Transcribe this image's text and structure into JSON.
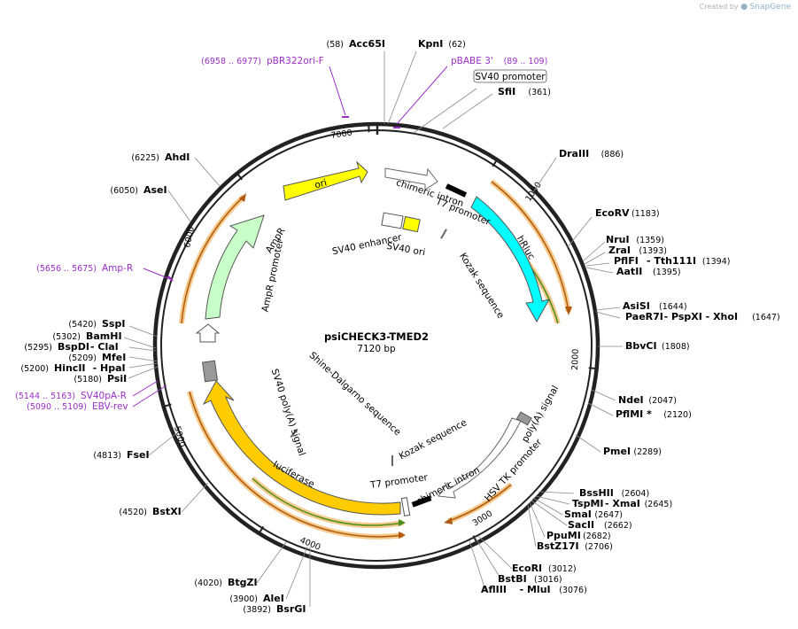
{
  "credit": {
    "prefix": "Created by",
    "brand": "SnapGene"
  },
  "plasmid": {
    "name": "psiCHECK3-TMED2",
    "length": "7120 bp"
  },
  "ticks": [
    "1000",
    "2000",
    "3000",
    "4000",
    "5000",
    "6000",
    "7000"
  ],
  "enzymes": [
    {
      "id": "acc65i",
      "name": "Acc65I",
      "pos": "(58)"
    },
    {
      "id": "kpni",
      "name": "KpnI",
      "pos": "(62)"
    },
    {
      "id": "sfii",
      "name": "SfiI",
      "pos": "(361)"
    },
    {
      "id": "draiii",
      "name": "DraIII",
      "pos": "(886)"
    },
    {
      "id": "ecorv",
      "name": "EcoRV",
      "pos": "(1183)"
    },
    {
      "id": "nrui",
      "name": "NruI",
      "pos": "(1359)"
    },
    {
      "id": "zrai",
      "name": "ZraI",
      "pos": "(1393)"
    },
    {
      "id": "pflfi",
      "name": "PflFI",
      "sep": "- Tth111I",
      "pos": "(1394)"
    },
    {
      "id": "aatii",
      "name": "AatII",
      "pos": "(1395)"
    },
    {
      "id": "asisi",
      "name": "AsiSI",
      "pos": "(1644)"
    },
    {
      "id": "paer7i",
      "name": "PaeR7I",
      "sep": "- PspXI  - XhoI",
      "pos": "(1647)"
    },
    {
      "id": "bbvci",
      "name": "BbvCI",
      "pos": "(1808)"
    },
    {
      "id": "ndei",
      "name": "NdeI",
      "pos": "(2047)"
    },
    {
      "id": "pflmi",
      "name": "PflMI *",
      "pos": "(2120)"
    },
    {
      "id": "pmei",
      "name": "PmeI",
      "pos": "(2289)"
    },
    {
      "id": "bsshii",
      "name": "BssHII",
      "pos": "(2604)"
    },
    {
      "id": "tspmi",
      "name": "TspMI",
      "sep": "- XmaI",
      "pos": "(2645)"
    },
    {
      "id": "smai",
      "name": "SmaI",
      "pos": "(2647)"
    },
    {
      "id": "sacii",
      "name": "SacII",
      "pos": "(2662)"
    },
    {
      "id": "ppumi",
      "name": "PpuMI",
      "pos": "(2682)"
    },
    {
      "id": "bstz17i",
      "name": "BstZ17I",
      "pos": "(2706)"
    },
    {
      "id": "ecori",
      "name": "EcoRI",
      "pos": "(3012)"
    },
    {
      "id": "bstbi",
      "name": "BstBI",
      "pos": "(3016)"
    },
    {
      "id": "afliii",
      "name": "AflIII",
      "sep": "- MluI",
      "pos": "(3076)"
    },
    {
      "id": "bstgzi",
      "name": "BtgZI",
      "pos": "(4020)"
    },
    {
      "id": "alei",
      "name": "AleI",
      "pos": "(3900)"
    },
    {
      "id": "bsrgi",
      "name": "BsrGI",
      "pos": "(3892)"
    },
    {
      "id": "bstxi",
      "name": "BstXI",
      "pos": "(4520)"
    },
    {
      "id": "fsei",
      "name": "FseI",
      "pos": "(4813)"
    },
    {
      "id": "psii",
      "name": "PsiI",
      "pos": "(5180)"
    },
    {
      "id": "hincii",
      "name": "HincII",
      "sep": "- HpaI",
      "pos": "(5200)"
    },
    {
      "id": "mfei",
      "name": "MfeI",
      "pos": "(5209)"
    },
    {
      "id": "bspdi",
      "name": "BspDI",
      "sep": "- ClaI",
      "pos": "(5295)"
    },
    {
      "id": "bamhi",
      "name": "BamHI",
      "pos": "(5302)"
    },
    {
      "id": "sspi",
      "name": "SspI",
      "pos": "(5420)"
    },
    {
      "id": "asei",
      "name": "AseI",
      "pos": "(6050)"
    },
    {
      "id": "ahdi",
      "name": "AhdI",
      "pos": "(6225)"
    }
  ],
  "primers": [
    {
      "id": "pbr322",
      "name": "pBR322ori-F",
      "pos": "(6958 .. 6977)"
    },
    {
      "id": "pbabe",
      "name": "pBABE 3'",
      "pos": "(89 .. 109)"
    },
    {
      "id": "ampr",
      "name": "Amp-R",
      "pos": "(5656 .. 5675)"
    },
    {
      "id": "sv40par",
      "name": "SV40pA-R",
      "pos": "(5144 .. 5163)"
    },
    {
      "id": "ebvrev",
      "name": "EBV-rev",
      "pos": "(5090 .. 5109)"
    }
  ],
  "sv40_promoter_box": "SV40 promoter",
  "features": {
    "ori": "ori",
    "ampr": "AmpR",
    "ampr_promoter": "AmpR promoter",
    "chimeric_intron_top": "chimeric intron",
    "t7_top": "T7 promoter",
    "hrluc": "hRluc",
    "sv40_enhancer": "SV40 enhancer",
    "sv40_ori": "SV40 ori",
    "kozak_top": "Kozak sequence",
    "sv40_polya": "SV40 poly(A) signal",
    "shine": "Shine-Dalgarno sequence",
    "kozak_bottom": "Kozak sequence",
    "polya_signal": "poly(A) signal",
    "hsv_tk": "HSV TK promoter",
    "chimeric_intron_bottom": "chimeric intron",
    "t7_bottom": "T7 promoter",
    "luciferase": "luciferase"
  },
  "colors": {
    "backbone": "#222222",
    "ori": "#ffff00",
    "ampr": "#c8ffc8",
    "hrluc": "#00ffff",
    "luciferase": "#ffcc00",
    "primer": "#9b2fc6",
    "orf_halo": "#f5c98a",
    "orf_line": "#4a8f1e"
  }
}
